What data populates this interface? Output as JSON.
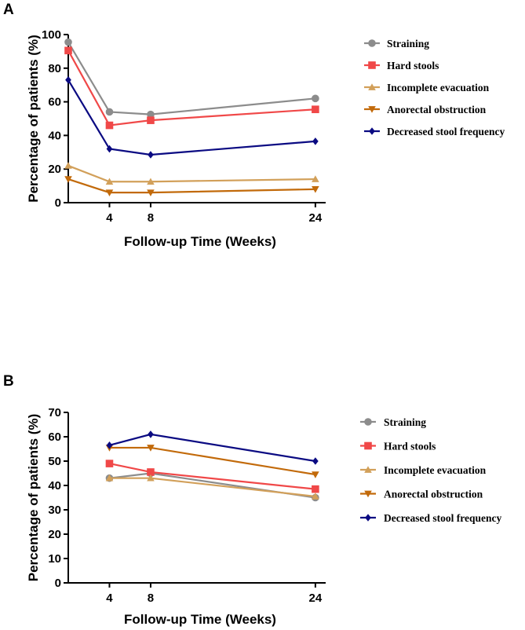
{
  "colors": {
    "Straining": "#8c8c8c",
    "Hard stools": "#f04848",
    "Incomplete evacuation": "#d2a05a",
    "Anorectal obstruction": "#c26a0a",
    "Decreased stool frequency": "#0a0a82"
  },
  "markers": {
    "Straining": "circle",
    "Hard stools": "square",
    "Incomplete evacuation": "triangle-up",
    "Anorectal obstruction": "triangle-down",
    "Decreased stool frequency": "diamond"
  },
  "chart_data": [
    {
      "panel": "A",
      "type": "line",
      "xlabel": "Follow-up Time (Weeks)",
      "ylabel": "Percentage of patients (%)",
      "xlim": [
        0,
        25
      ],
      "ylim": [
        0,
        100
      ],
      "xticks": [
        4,
        8,
        24
      ],
      "yticks": [
        0,
        20,
        40,
        60,
        80,
        100
      ],
      "x": [
        0,
        4,
        8,
        24
      ],
      "legend_position": "right",
      "series": [
        {
          "name": "Straining",
          "values": [
            95.5,
            54,
            52.5,
            62
          ]
        },
        {
          "name": "Hard stools",
          "values": [
            90.5,
            46,
            49,
            55.5
          ]
        },
        {
          "name": "Incomplete evacuation",
          "values": [
            22,
            12.5,
            12.5,
            14
          ]
        },
        {
          "name": "Anorectal obstruction",
          "values": [
            14,
            6,
            6,
            8
          ]
        },
        {
          "name": "Decreased stool frequency",
          "values": [
            73,
            32,
            28.5,
            36.5
          ]
        }
      ]
    },
    {
      "panel": "B",
      "type": "line",
      "xlabel": "Follow-up Time (Weeks)",
      "ylabel": "Percentage of patients (%)",
      "xlim": [
        0,
        25
      ],
      "ylim": [
        0,
        70
      ],
      "xticks": [
        4,
        8,
        24
      ],
      "yticks": [
        0,
        10,
        20,
        30,
        40,
        50,
        60,
        70
      ],
      "x": [
        4,
        8,
        24
      ],
      "legend_position": "right",
      "series": [
        {
          "name": "Straining",
          "values": [
            43,
            45,
            35
          ]
        },
        {
          "name": "Hard stools",
          "values": [
            49,
            45.5,
            38.5
          ]
        },
        {
          "name": "Incomplete evacuation",
          "values": [
            43,
            43,
            35.5
          ]
        },
        {
          "name": "Anorectal obstruction",
          "values": [
            55.5,
            55.5,
            44.5
          ]
        },
        {
          "name": "Decreased stool frequency",
          "values": [
            56.5,
            61,
            50
          ]
        }
      ]
    }
  ]
}
